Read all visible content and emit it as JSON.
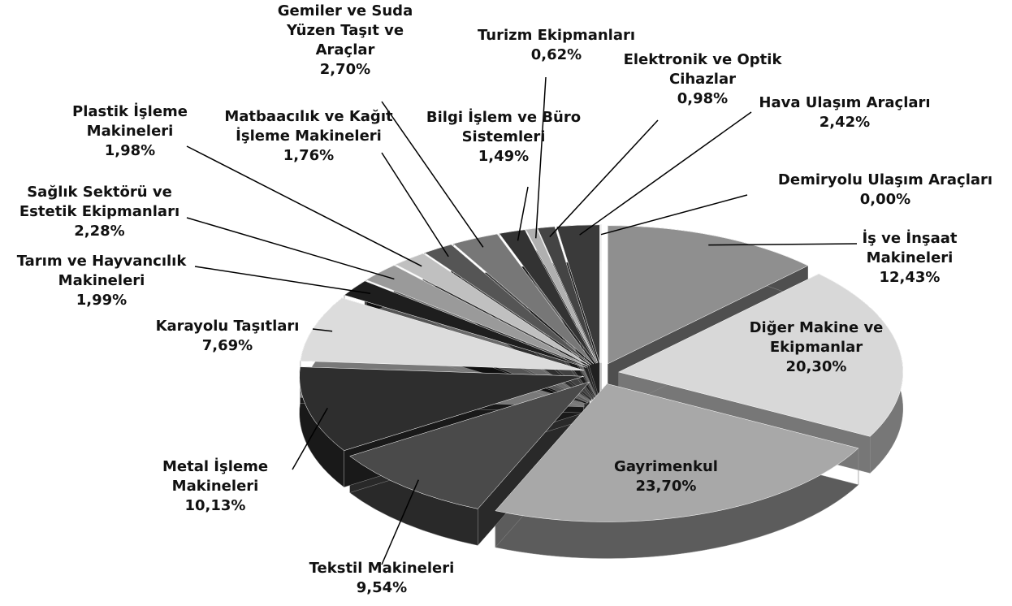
{
  "chart_data": {
    "type": "pie",
    "categories": [
      "İş ve İnşaat Makineleri",
      "Diğer Makine ve Ekipmanlar",
      "Gayrimenkul",
      "Tekstil Makineleri",
      "Metal İşleme Makineleri",
      "Karayolu Taşıtları",
      "Tarım ve Hayvancılık Makineleri",
      "Sağlık Sektörü ve Estetik Ekipmanları",
      "Plastik İşleme Makineleri",
      "Matbaacılık ve Kağıt İşleme Makineleri",
      "Gemiler ve Suda Yüzen Taşıt ve Araçlar",
      "Bilgi İşlem ve Büro Sistemleri",
      "Turizm Ekipmanları",
      "Elektronik ve Optik Cihazlar",
      "Hava Ulaşım Araçları",
      "Demiryolu Ulaşım Araçları"
    ],
    "values": [
      12.43,
      20.3,
      23.7,
      9.54,
      10.13,
      7.69,
      1.99,
      2.28,
      1.98,
      1.76,
      2.7,
      1.49,
      0.62,
      0.98,
      2.42,
      0.0
    ],
    "value_labels": [
      "12,43%",
      "20,30%",
      "23,70%",
      "9,54%",
      "10,13%",
      "7,69%",
      "1,99%",
      "2,28%",
      "1,98%",
      "1,76%",
      "2,70%",
      "1,49%",
      "0,62%",
      "0,98%",
      "2,42%",
      "0,00%"
    ],
    "colors": [
      "#8f8f8f",
      "#d8d8d8",
      "#a8a8a8",
      "#4a4a4a",
      "#2e2e2e",
      "#dcdcdc",
      "#1e1e1e",
      "#9a9a9a",
      "#c0c0c0",
      "#555555",
      "#777777",
      "#333333",
      "#b0b0b0",
      "#444444",
      "#3a3a3a",
      "#000000"
    ]
  }
}
